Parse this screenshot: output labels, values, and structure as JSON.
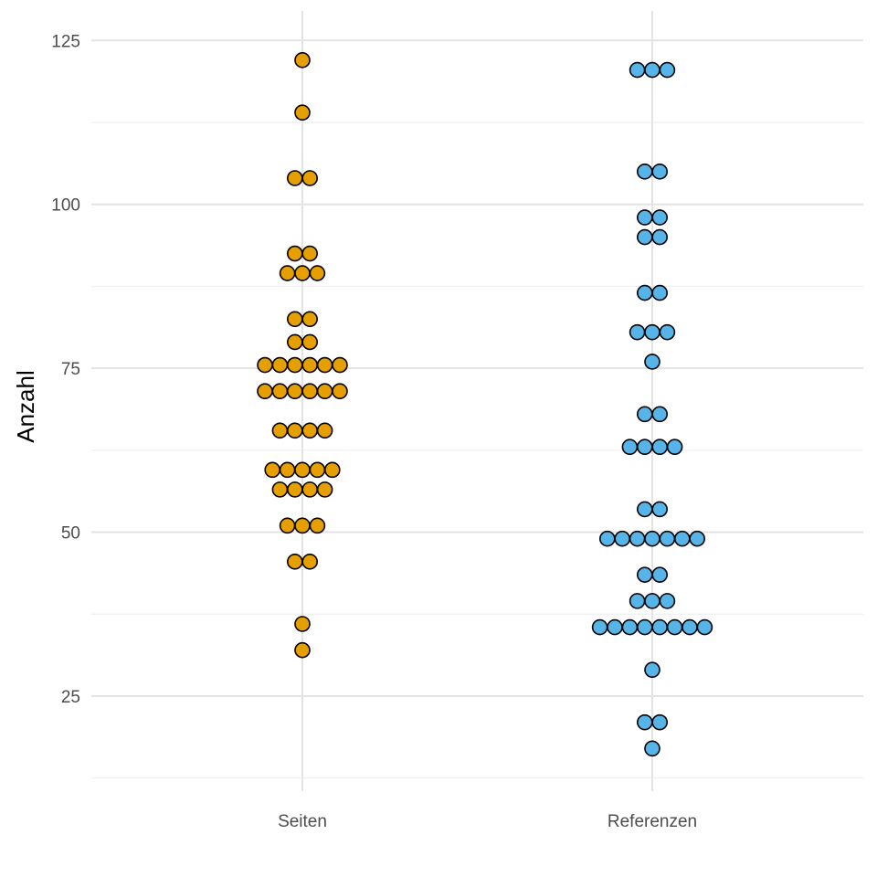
{
  "chart_data": {
    "type": "scatter",
    "subtype": "dotplot",
    "title": "",
    "xlabel": "",
    "ylabel": "Anzahl",
    "categories": [
      "Seiten",
      "Referenzen"
    ],
    "ylim": [
      10.5,
      129.5
    ],
    "yticks": [
      25,
      50,
      75,
      100,
      125
    ],
    "grid": true,
    "legend": "none",
    "series": [
      {
        "category": "Seiten",
        "color": "#E69F00",
        "points": [
          {
            "y": 122,
            "count": 1
          },
          {
            "y": 114,
            "count": 1
          },
          {
            "y": 104,
            "count": 2
          },
          {
            "y": 92.5,
            "count": 2
          },
          {
            "y": 89.5,
            "count": 3
          },
          {
            "y": 82.5,
            "count": 2
          },
          {
            "y": 79,
            "count": 2
          },
          {
            "y": 75.5,
            "count": 6
          },
          {
            "y": 71.5,
            "count": 6
          },
          {
            "y": 65.5,
            "count": 4
          },
          {
            "y": 59.5,
            "count": 5
          },
          {
            "y": 56.5,
            "count": 4
          },
          {
            "y": 51,
            "count": 3
          },
          {
            "y": 45.5,
            "count": 2
          },
          {
            "y": 36,
            "count": 1
          },
          {
            "y": 32,
            "count": 1
          }
        ]
      },
      {
        "category": "Referenzen",
        "color": "#56B4E9",
        "points": [
          {
            "y": 120.5,
            "count": 3
          },
          {
            "y": 105,
            "count": 2
          },
          {
            "y": 98,
            "count": 2
          },
          {
            "y": 95,
            "count": 2
          },
          {
            "y": 86.5,
            "count": 2
          },
          {
            "y": 80.5,
            "count": 3
          },
          {
            "y": 76,
            "count": 1
          },
          {
            "y": 68,
            "count": 2
          },
          {
            "y": 63,
            "count": 4
          },
          {
            "y": 53.5,
            "count": 2
          },
          {
            "y": 49,
            "count": 7
          },
          {
            "y": 43.5,
            "count": 2
          },
          {
            "y": 39.5,
            "count": 3
          },
          {
            "y": 35.5,
            "count": 8
          },
          {
            "y": 29,
            "count": 1
          },
          {
            "y": 21,
            "count": 2
          },
          {
            "y": 17,
            "count": 1
          }
        ]
      }
    ]
  }
}
